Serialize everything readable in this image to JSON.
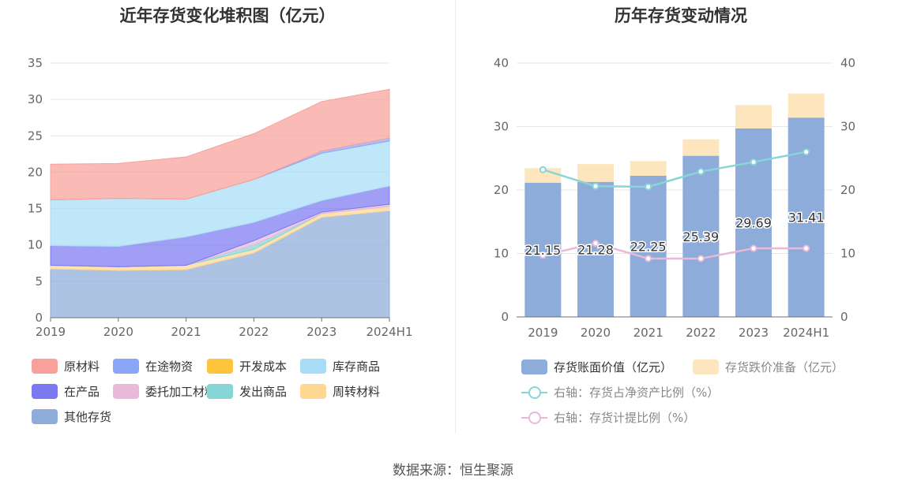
{
  "left_chart": {
    "title": "近年存货变化堆积图（亿元）",
    "legend": [
      {
        "key": "raw",
        "label": "原材料",
        "color": "#f8a19a"
      },
      {
        "key": "transit",
        "label": "在途物资",
        "color": "#8aa6f8"
      },
      {
        "key": "dev",
        "label": "开发成本",
        "color": "#fec43c"
      },
      {
        "key": "goods",
        "label": "库存商品",
        "color": "#a8dcf6"
      },
      {
        "key": "wip",
        "label": "在产品",
        "color": "#7b79f1"
      },
      {
        "key": "consign",
        "label": "委托加工材料",
        "color": "#e8b9d9"
      },
      {
        "key": "shipped",
        "label": "发出商品",
        "color": "#86d6d8"
      },
      {
        "key": "turnover",
        "label": "周转材料",
        "color": "#fed892"
      },
      {
        "key": "other",
        "label": "其他存货",
        "color": "#8eacd9"
      }
    ]
  },
  "right_chart": {
    "title": "历年存货变动情况",
    "legend": [
      {
        "label": "存货账面价值（亿元）",
        "color": "#8eacd9",
        "kind": "bar"
      },
      {
        "label": "存货跌价准备（亿元）",
        "color": "#fde6bd",
        "kind": "bar"
      },
      {
        "label": "右轴：存货占净资产比例（%）",
        "color": "#86d6d8",
        "kind": "line"
      },
      {
        "label": "右轴：存货计提比例（%）",
        "color": "#e8b9d9",
        "kind": "line"
      }
    ]
  },
  "source": "数据来源：恒生聚源",
  "chart_data": [
    {
      "type": "area",
      "stacked": true,
      "title": "近年存货变化堆积图（亿元）",
      "categories": [
        "2019",
        "2020",
        "2021",
        "2022",
        "2023",
        "2024H1"
      ],
      "ylim": [
        0,
        35
      ],
      "yticks": [
        0,
        5,
        10,
        15,
        20,
        25,
        30,
        35
      ],
      "series": [
        {
          "name": "其他存货",
          "key": "other",
          "values": [
            6.7,
            6.5,
            6.6,
            8.9,
            13.8,
            14.7
          ]
        },
        {
          "name": "周转材料",
          "key": "turnover",
          "values": [
            0.5,
            0.5,
            0.6,
            0.5,
            0.5,
            0.6
          ]
        },
        {
          "name": "发出商品",
          "key": "shipped",
          "values": [
            0.0,
            0.0,
            0.0,
            0.6,
            0.0,
            0.0
          ]
        },
        {
          "name": "委托加工材料",
          "key": "consign",
          "values": [
            0.0,
            0.0,
            0.0,
            0.6,
            0.2,
            0.3
          ]
        },
        {
          "name": "在产品",
          "key": "wip",
          "values": [
            2.7,
            2.8,
            3.9,
            2.5,
            1.6,
            2.5
          ]
        },
        {
          "name": "库存商品",
          "key": "goods",
          "values": [
            6.3,
            6.6,
            5.2,
            5.9,
            6.5,
            6.2
          ]
        },
        {
          "name": "开发成本",
          "key": "dev",
          "values": [
            0.0,
            0.0,
            0.0,
            0.0,
            0.0,
            0.0
          ]
        },
        {
          "name": "在途物资",
          "key": "transit",
          "values": [
            0.0,
            0.0,
            0.0,
            0.0,
            0.3,
            0.4
          ]
        },
        {
          "name": "原材料",
          "key": "raw",
          "values": [
            4.9,
            4.8,
            5.8,
            6.3,
            6.8,
            6.7
          ]
        }
      ]
    },
    {
      "type": "bar",
      "stacked": true,
      "title": "历年存货变动情况",
      "categories": [
        "2019",
        "2020",
        "2021",
        "2022",
        "2023",
        "2024H1"
      ],
      "ylim": [
        0,
        40
      ],
      "yticks": [
        0,
        10,
        20,
        30,
        40
      ],
      "y2lim": [
        0,
        40
      ],
      "y2ticks": [
        0,
        10,
        20,
        30,
        40
      ],
      "series": [
        {
          "name": "存货账面价值（亿元）",
          "type": "bar",
          "values": [
            21.15,
            21.28,
            22.25,
            25.39,
            29.69,
            31.41
          ],
          "labels": [
            "21.15",
            "21.28",
            "22.25",
            "25.39",
            "29.69",
            "31.41"
          ]
        },
        {
          "name": "存货跌价准备（亿元）",
          "type": "bar",
          "values": [
            2.3,
            2.8,
            2.3,
            2.6,
            3.7,
            3.8
          ]
        },
        {
          "name": "右轴：存货占净资产比例（%）",
          "type": "line",
          "axis": "right",
          "values": [
            23.2,
            20.6,
            20.5,
            22.9,
            24.4,
            26.0
          ]
        },
        {
          "name": "右轴：存货计提比例（%）",
          "type": "line",
          "axis": "right",
          "values": [
            9.7,
            11.6,
            9.2,
            9.2,
            10.8,
            10.8
          ]
        }
      ]
    }
  ]
}
